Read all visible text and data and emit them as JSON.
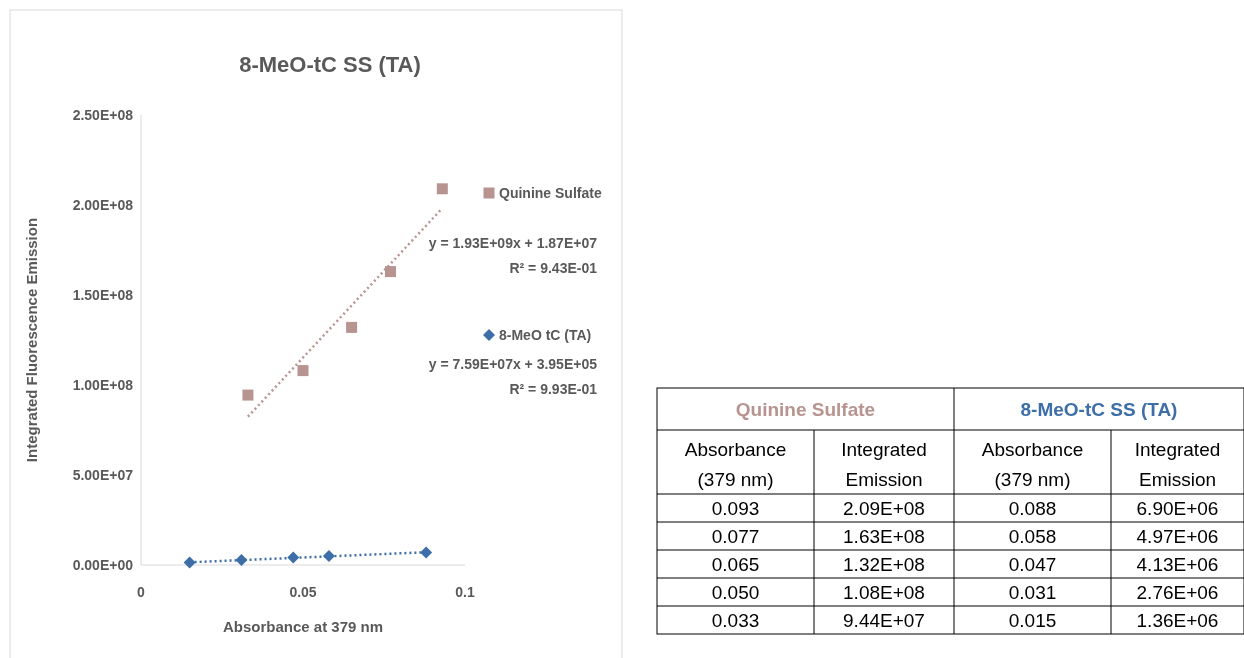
{
  "chart_data": [
    {
      "type": "scatter",
      "title": "8-MeO-tC SS (TA)",
      "xlabel": "Absorbance at 379 nm",
      "ylabel": "Integrated Fluorescence Emission",
      "xlim": [
        0,
        0.1
      ],
      "xticks": [
        0,
        0.05,
        0.1
      ],
      "ylim": [
        0,
        250000000
      ],
      "yticks": [
        {
          "value": 0,
          "label": "0.00E+00"
        },
        {
          "value": 50000000,
          "label": "5.00E+07"
        },
        {
          "value": 100000000,
          "label": "1.00E+08"
        },
        {
          "value": 150000000,
          "label": "1.50E+08"
        },
        {
          "value": 200000000,
          "label": "2.00E+08"
        },
        {
          "value": 250000000,
          "label": "2.50E+08"
        }
      ],
      "grid": false,
      "legend": "right",
      "series": [
        {
          "name": "Quinine Sulfate",
          "type": "scatter",
          "marker": "square",
          "color": "#b89490",
          "x": [
            0.093,
            0.077,
            0.065,
            0.05,
            0.033
          ],
          "values": [
            209000000,
            163000000,
            132000000,
            108000000,
            94400000
          ]
        },
        {
          "name": "8-MeO tC (TA)",
          "type": "scatter",
          "marker": "diamond",
          "color": "#3d6ea8",
          "x": [
            0.088,
            0.058,
            0.047,
            0.031,
            0.015
          ],
          "values": [
            6900000,
            4970000,
            4130000,
            2760000,
            1360000
          ]
        },
        {
          "type": "line",
          "line_style": "dotted",
          "marker": "none",
          "color": "#b89490",
          "x": [
            0.033,
            0.093
          ],
          "values": [
            82400000,
            198200000
          ]
        },
        {
          "type": "line",
          "line_style": "dotted",
          "marker": "none",
          "color": "#3d6ea8",
          "x": [
            0.015,
            0.088
          ],
          "values": [
            1500000,
            7100000
          ]
        }
      ],
      "annotations": [
        "y = 1.93E+09x + 1.87E+07",
        "R² = 9.43E-01",
        "y = 7.59E+07x + 3.95E+05",
        "R² = 9.93E-01"
      ]
    },
    {
      "type": "other",
      "annotations": [
        "Quinine Sulfate",
        "8-MeO-tC SS (TA)",
        "Absorbance (379 nm)",
        "Integrated Emission",
        "Absorbance (379 nm)",
        "Integrated Emission",
        "0.093",
        "2.09E+08",
        "0.088",
        "6.90E+06",
        "0.077",
        "1.63E+08",
        "0.058",
        "4.97E+06",
        "0.065",
        "1.32E+08",
        "0.047",
        "4.13E+06",
        "0.050",
        "1.08E+08",
        "0.031",
        "2.76E+06",
        "0.033",
        "9.44E+07",
        "0.015",
        "1.36E+06"
      ]
    }
  ]
}
